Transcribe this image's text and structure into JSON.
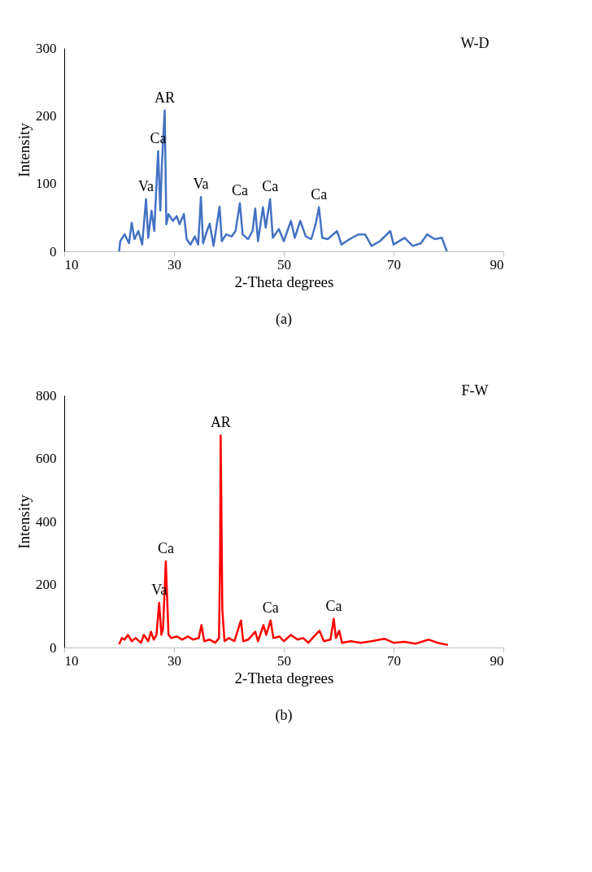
{
  "chart_data": [
    {
      "type": "line",
      "title": "W-D",
      "xlabel": "2-Theta degrees",
      "ylabel": "Intensity",
      "xlim": [
        10,
        90
      ],
      "xticks": [
        10,
        30,
        50,
        70,
        90
      ],
      "ylim": [
        0,
        300
      ],
      "yticks": [
        0,
        100,
        200,
        300
      ],
      "grid": false,
      "marker": "none",
      "line_style": "solid",
      "x": [
        20,
        20.2,
        21,
        21.8,
        22.3,
        22.8,
        23.5,
        24.2,
        24.9,
        25.3,
        25.9,
        26.4,
        27.1,
        27.5,
        27.8,
        28.3,
        28.6,
        29,
        29.8,
        30.5,
        31,
        31.8,
        32.3,
        33,
        33.8,
        34.4,
        34.9,
        35.3,
        36,
        36.5,
        37.2,
        38.3,
        38.7,
        39.5,
        40.5,
        41.2,
        42,
        42.5,
        43.5,
        44.3,
        44.8,
        45.3,
        46.2,
        46.7,
        47.5,
        48,
        49.1,
        50,
        51.3,
        52,
        53,
        54,
        55,
        55.8,
        56.4,
        57,
        58,
        59.7,
        60.5,
        62,
        63.6,
        64.8,
        66,
        67.5,
        69.4,
        70,
        72,
        73.5,
        75,
        76.1,
        77.5,
        78.8,
        79.7
      ],
      "series": [
        {
          "color": "#4472c4",
          "values": [
            0,
            15,
            25,
            12,
            42,
            18,
            30,
            10,
            77,
            20,
            60,
            30,
            148,
            60,
            130,
            208,
            40,
            55,
            45,
            52,
            40,
            55,
            18,
            10,
            22,
            10,
            80,
            12,
            30,
            41,
            8,
            66,
            15,
            25,
            22,
            30,
            71,
            25,
            18,
            30,
            63,
            15,
            65,
            35,
            77,
            20,
            33,
            15,
            45,
            20,
            45,
            22,
            18,
            40,
            65,
            20,
            18,
            30,
            10,
            18,
            25,
            25,
            8,
            15,
            30,
            10,
            20,
            8,
            12,
            25,
            18,
            20,
            0
          ]
        }
      ],
      "annotations": [
        {
          "text": "AR",
          "x": 28.3,
          "y": 208
        },
        {
          "text": "Ca",
          "x": 27.1,
          "y": 148
        },
        {
          "text": "Va",
          "x": 24.9,
          "y": 77
        },
        {
          "text": "Va",
          "x": 34.9,
          "y": 80
        },
        {
          "text": "Ca",
          "x": 42,
          "y": 71
        },
        {
          "text": "Ca",
          "x": 47.5,
          "y": 77
        },
        {
          "text": "Ca",
          "x": 56.4,
          "y": 65
        },
        "(a)"
      ]
    },
    {
      "type": "line",
      "title": "F-W",
      "xlabel": "2-Theta degrees",
      "ylabel": "Intensity",
      "xlim": [
        10,
        90
      ],
      "xticks": [
        10,
        30,
        50,
        70,
        90
      ],
      "ylim": [
        0,
        800
      ],
      "yticks": [
        0,
        200,
        400,
        600,
        800
      ],
      "grid": false,
      "marker": "none",
      "line_style": "solid",
      "x": [
        20,
        20.5,
        21,
        21.6,
        22.3,
        23,
        24,
        24.5,
        25.3,
        25.8,
        26.3,
        26.8,
        27.3,
        27.7,
        28,
        28.5,
        29,
        29.5,
        30.5,
        31.5,
        32.5,
        33.5,
        34.5,
        35,
        35.5,
        36.5,
        37.5,
        38.2,
        38.4,
        38.5,
        38.8,
        39.2,
        40,
        41,
        42.2,
        42.6,
        43.5,
        44.8,
        45.3,
        46.3,
        46.8,
        47.6,
        48.1,
        49.2,
        50,
        51.3,
        52.5,
        53.5,
        54.5,
        55.5,
        56.5,
        57.3,
        58.5,
        59.1,
        59.5,
        60.1,
        60.6,
        62.2,
        64,
        66,
        68.3,
        70,
        72,
        74,
        76.4,
        78,
        79.9
      ],
      "series": [
        {
          "color": "#ff0000",
          "values": [
            10,
            30,
            25,
            40,
            20,
            30,
            15,
            40,
            20,
            50,
            25,
            40,
            142,
            40,
            60,
            273,
            40,
            30,
            35,
            25,
            35,
            25,
            30,
            71,
            20,
            25,
            15,
            30,
            300,
            673,
            120,
            20,
            30,
            20,
            86,
            20,
            25,
            50,
            20,
            71,
            40,
            86,
            30,
            35,
            20,
            40,
            25,
            30,
            15,
            35,
            53,
            20,
            25,
            91,
            30,
            53,
            15,
            20,
            15,
            20,
            28,
            15,
            18,
            12,
            25,
            15,
            8
          ]
        }
      ],
      "annotations": [
        {
          "text": "AR",
          "x": 38.5,
          "y": 673
        },
        {
          "text": "Ca",
          "x": 28.5,
          "y": 273
        },
        {
          "text": "Va",
          "x": 27.3,
          "y": 142
        },
        {
          "text": "Ca",
          "x": 47.6,
          "y": 86
        },
        {
          "text": "Ca",
          "x": 59.1,
          "y": 91
        },
        "(b)"
      ]
    }
  ]
}
